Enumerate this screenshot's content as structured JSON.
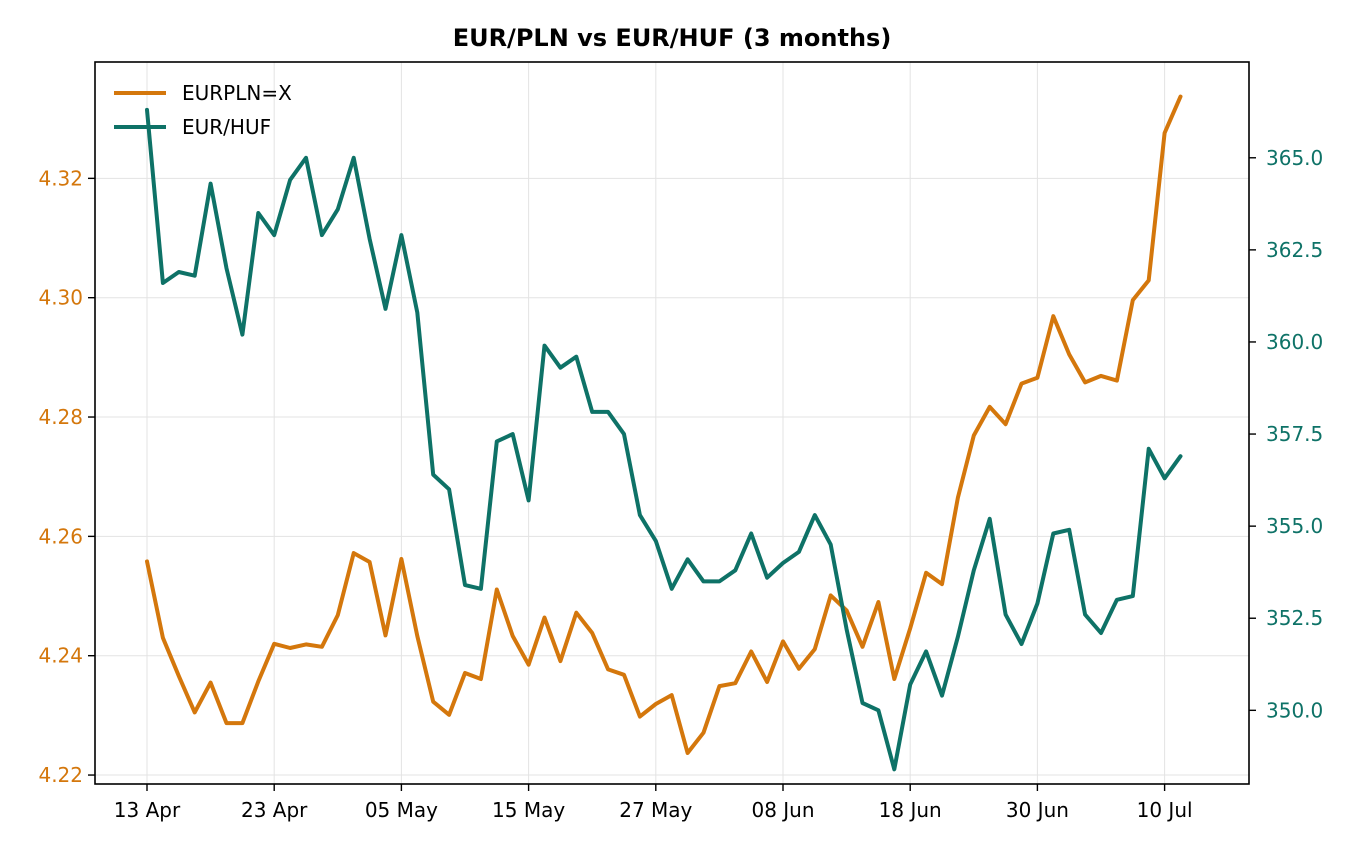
{
  "colors": {
    "pln": "#d4770c",
    "huf": "#0e7267",
    "grid": "#e3e3e3",
    "axis": "#000000"
  },
  "chart_data": {
    "type": "line",
    "title": "EUR/PLN vs EUR/HUF (3 months)",
    "grid": true,
    "legend_position": "top-left",
    "x_tick_labels": [
      "13 Apr",
      "23 Apr",
      "05 May",
      "15 May",
      "27 May",
      "08 Jun",
      "18 Jun",
      "30 Jun",
      "10 Jul"
    ],
    "y_left": {
      "ticks": [
        "4.22",
        "4.24",
        "4.26",
        "4.28",
        "4.30",
        "4.32"
      ],
      "range": [
        4.2185,
        4.3395
      ]
    },
    "y_right": {
      "ticks": [
        "350.0",
        "352.5",
        "355.0",
        "357.5",
        "360.0",
        "362.5",
        "365.0"
      ],
      "range": [
        348.0,
        367.6
      ]
    },
    "series": [
      {
        "name": "EURPLN=X",
        "axis": "left",
        "values": [
          4.2558,
          4.243,
          4.2366,
          4.2305,
          4.2355,
          4.2287,
          4.2287,
          4.2357,
          4.242,
          4.2413,
          4.2419,
          4.2415,
          4.2468,
          4.2572,
          4.2557,
          4.2434,
          4.2562,
          4.2433,
          4.2323,
          4.2301,
          4.2371,
          4.2361,
          4.2511,
          4.2433,
          4.2385,
          4.2464,
          4.2391,
          4.2472,
          4.2438,
          4.2377,
          4.2368,
          4.2298,
          4.2319,
          4.2334,
          4.2237,
          4.2271,
          4.2349,
          4.2354,
          4.2407,
          4.2356,
          4.2424,
          4.2378,
          4.2411,
          4.2501,
          4.2476,
          4.2415,
          4.249,
          4.2361,
          4.2446,
          4.2539,
          4.252,
          4.2665,
          4.2769,
          4.2817,
          4.2788,
          4.2856,
          4.2866,
          4.2969,
          4.2905,
          4.2858,
          4.2869,
          4.2861,
          4.2996,
          4.3029,
          4.3276,
          4.3337
        ]
      },
      {
        "name": "EUR/HUF",
        "axis": "right",
        "values": [
          366.3,
          361.6,
          361.9,
          361.8,
          364.3,
          362.0,
          360.2,
          363.5,
          362.9,
          364.4,
          365.0,
          362.9,
          363.6,
          365.0,
          362.8,
          360.9,
          362.9,
          360.8,
          356.4,
          356.0,
          353.4,
          353.3,
          357.3,
          357.5,
          355.7,
          359.9,
          359.3,
          359.6,
          358.1,
          358.1,
          357.5,
          355.3,
          354.6,
          353.3,
          354.1,
          353.5,
          353.5,
          353.8,
          354.8,
          353.6,
          354.0,
          354.3,
          355.3,
          354.5,
          352.2,
          350.2,
          350.0,
          348.4,
          350.7,
          351.6,
          350.4,
          352.0,
          353.8,
          355.2,
          352.6,
          351.8,
          352.9,
          354.8,
          354.9,
          352.6,
          352.1,
          353.0,
          353.1,
          357.1,
          356.3,
          356.9
        ]
      }
    ]
  }
}
